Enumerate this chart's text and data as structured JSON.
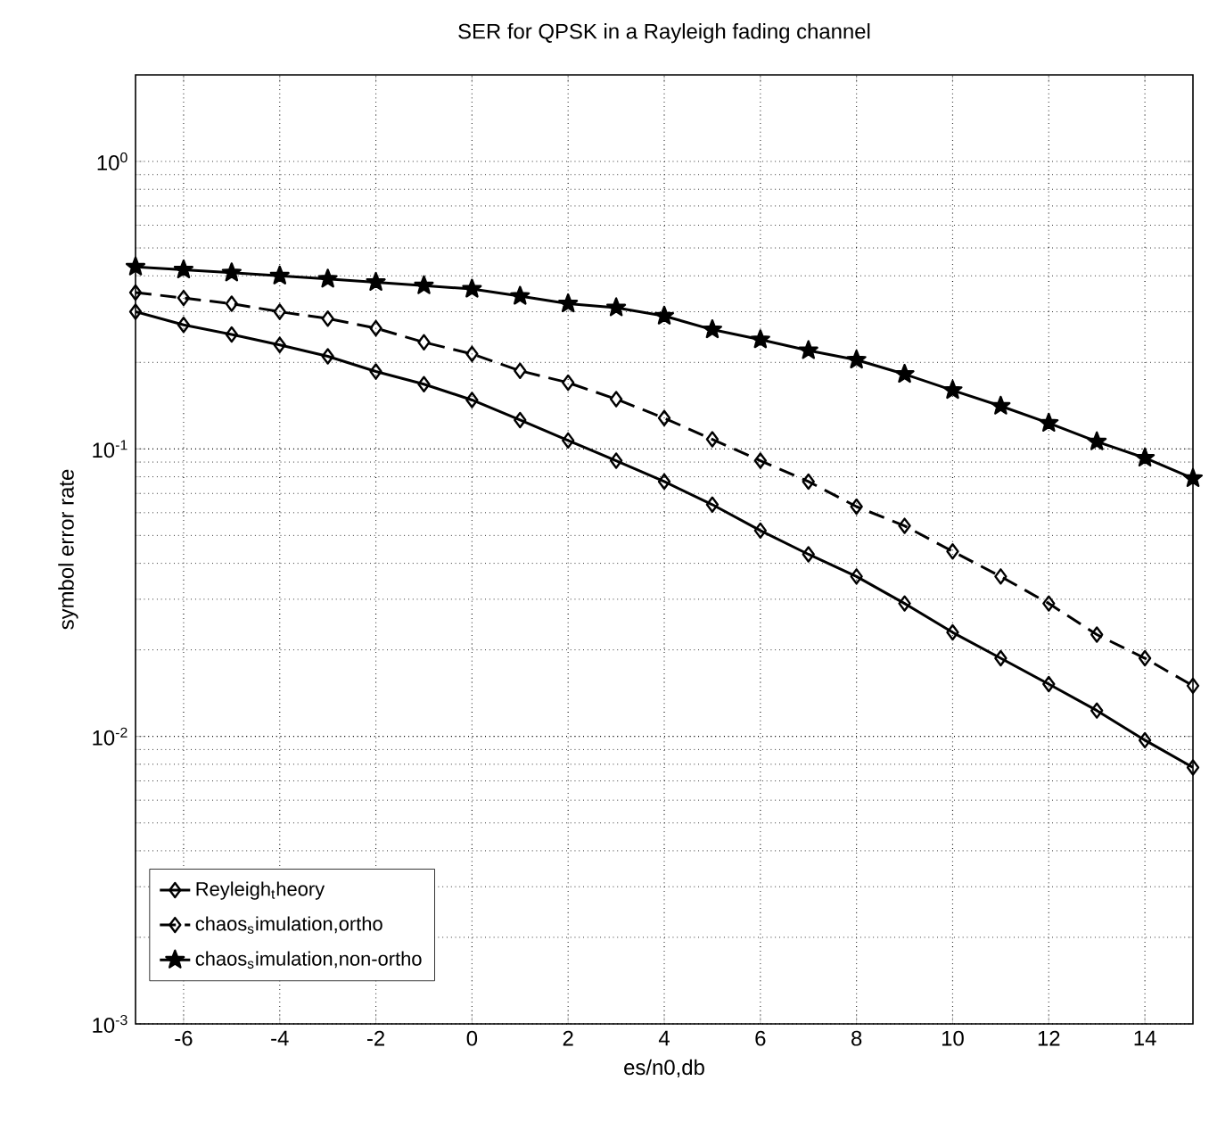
{
  "chart_data": {
    "type": "line",
    "title": "SER for QPSK in a Rayleigh fading channel",
    "xlabel": "es/n0,db",
    "ylabel": "symbol error rate",
    "x": [
      -7,
      -6,
      -5,
      -4,
      -3,
      -2,
      -1,
      0,
      1,
      2,
      3,
      4,
      5,
      6,
      7,
      8,
      9,
      10,
      11,
      12,
      13,
      14,
      15
    ],
    "series": [
      {
        "name": "Reyleigh$_{t}$heory",
        "color": "#000000",
        "marker": "diamond",
        "line_style": "solid",
        "values": [
          0.3,
          0.27,
          0.25,
          0.23,
          0.21,
          0.186,
          0.168,
          0.148,
          0.126,
          0.107,
          0.091,
          0.077,
          0.064,
          0.052,
          0.043,
          0.036,
          0.029,
          0.023,
          0.0187,
          0.0152,
          0.0123,
          0.0097,
          0.0078
        ]
      },
      {
        "name": "chaos$_{s}$imulation,ortho",
        "color": "#000000",
        "marker": "diamond",
        "line_style": "dashed",
        "values": [
          0.35,
          0.335,
          0.32,
          0.3,
          0.284,
          0.263,
          0.235,
          0.214,
          0.187,
          0.17,
          0.149,
          0.128,
          0.108,
          0.091,
          0.077,
          0.063,
          0.054,
          0.044,
          0.036,
          0.029,
          0.0226,
          0.0187,
          0.015
        ]
      },
      {
        "name": "chaos$_{s}$imulation,non-ortho",
        "color": "#000000",
        "marker": "star",
        "line_style": "solid",
        "values": [
          0.43,
          0.42,
          0.41,
          0.4,
          0.39,
          0.38,
          0.37,
          0.36,
          0.34,
          0.32,
          0.31,
          0.29,
          0.26,
          0.24,
          0.22,
          0.204,
          0.182,
          0.16,
          0.141,
          0.123,
          0.106,
          0.093,
          0.079
        ]
      }
    ],
    "log": "y",
    "xlim": [
      -7,
      15
    ],
    "ylim": [
      0.001,
      2
    ],
    "xticks": [
      -6,
      -4,
      -2,
      0,
      2,
      4,
      6,
      8,
      10,
      12,
      14
    ],
    "yticks": [
      {
        "value": 0.001,
        "label": "10$^{-3}$"
      },
      {
        "value": 0.01,
        "label": "10$^{-2}$"
      },
      {
        "value": 0.1,
        "label": "10$^{-1}$"
      },
      {
        "value": 1,
        "label": "10$^{0}$"
      }
    ],
    "grid": true,
    "legend": "bottom left"
  }
}
